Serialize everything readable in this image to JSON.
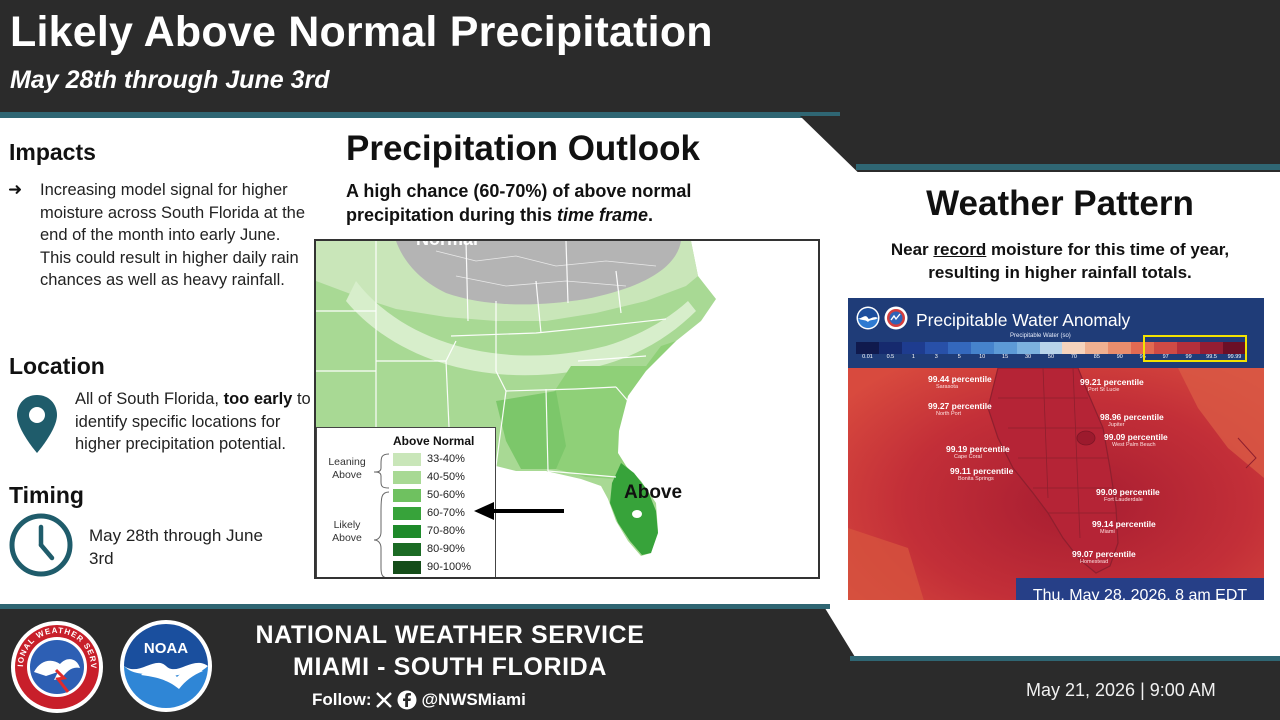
{
  "header": {
    "title": "Likely Above Normal Precipitation",
    "subtitle": "May 28th through June 3rd"
  },
  "impacts": {
    "heading": "Impacts",
    "bullet_marker": "➜",
    "text": "Increasing model signal for higher moisture across South Florida at the end of the month into early June. This could result in higher daily rain chances as well as heavy rainfall."
  },
  "location": {
    "heading": "Location",
    "icon": "map-pin-icon",
    "text_pre": "All of South Florida, ",
    "text_bold": "too early",
    "text_post": " to identify specific locations for higher precipitation potential."
  },
  "timing": {
    "heading": "Timing",
    "icon": "clock-icon",
    "text": "May 28th through June 3rd"
  },
  "outlook": {
    "heading": "Precipitation Outlook",
    "sub_pre": "A high chance (60-70%) of above normal precipitation during this ",
    "sub_italic": "time frame",
    "sub_post": ".",
    "map": {
      "normal_label": "Normal",
      "above_label": "Above",
      "legend_title": "Above Normal",
      "group_leaning": "Leaning\nAbove",
      "group_likely": "Likely\nAbove",
      "categories": [
        {
          "label": "33-40%",
          "color": "#c9e6b9"
        },
        {
          "label": "40-50%",
          "color": "#a8d994"
        },
        {
          "label": "50-60%",
          "color": "#6fc160"
        },
        {
          "label": "60-70%",
          "color": "#37a33a"
        },
        {
          "label": "70-80%",
          "color": "#1e8a2a"
        },
        {
          "label": "80-90%",
          "color": "#1b6b24"
        },
        {
          "label": "90-100%",
          "color": "#154d19"
        }
      ],
      "highlighted_category": "60-70%"
    }
  },
  "weather_pattern": {
    "heading": "Weather Pattern",
    "sub_pre": "Near ",
    "sub_underlined": "record",
    "sub_post": " moisture for this time of year, resulting in higher rainfall totals.",
    "panel": {
      "title": "Precipitable Water Anomaly",
      "colorbar_label": "Precipitable Water (so)",
      "colorbar_ticks": [
        "0.01",
        "0.5",
        "1",
        "3",
        "5",
        "10",
        "15",
        "30",
        "50",
        "70",
        "85",
        "90",
        "95",
        "97",
        "99",
        "99.5",
        "99.99"
      ],
      "colorbar_colors": [
        "#101a4d",
        "#162a6e",
        "#1e3c8f",
        "#2850a8",
        "#3468bd",
        "#4683cc",
        "#5d9ad6",
        "#7cb2df",
        "#b9d4ea",
        "#f5d3bd",
        "#efb091",
        "#e98d6d",
        "#e26a52",
        "#cf4a45",
        "#b42f3b",
        "#951d33",
        "#6b0f27"
      ],
      "readings": [
        {
          "value": "99.44 percentile",
          "city": "Sarasota"
        },
        {
          "value": "99.27 percentile",
          "city": "North Port"
        },
        {
          "value": "99.19 percentile",
          "city": "Cape Coral"
        },
        {
          "value": "99.11 percentile",
          "city": "Bonita Springs"
        },
        {
          "value": "99.21 percentile",
          "city": "Port St Lucie"
        },
        {
          "value": "98.96 percentile",
          "city": "Jupiter"
        },
        {
          "value": "99.09 percentile",
          "city": "West Palm Beach"
        },
        {
          "value": "99.09 percentile",
          "city": "Fort Lauderdale"
        },
        {
          "value": "99.14 percentile",
          "city": "Miami"
        },
        {
          "value": "99.07 percentile",
          "city": "Homestead"
        }
      ],
      "timestamp": "Thu, May 28, 2026, 8 am EDT"
    }
  },
  "footer": {
    "org_line1": "NATIONAL WEATHER SERVICE",
    "org_line2": "MIAMI - SOUTH FLORIDA",
    "follow_label": "Follow:",
    "handle": "@NWSMiami",
    "nws_seal_text": "NATIONAL WEATHER SERVICE",
    "noaa_text": "NOAA",
    "posted": "May 21, 2026 | 9:00 AM"
  },
  "colors": {
    "dark_band": "#2b2b2b",
    "teal_accent": "#2f6673",
    "location_icon": "#1f5c6b"
  }
}
